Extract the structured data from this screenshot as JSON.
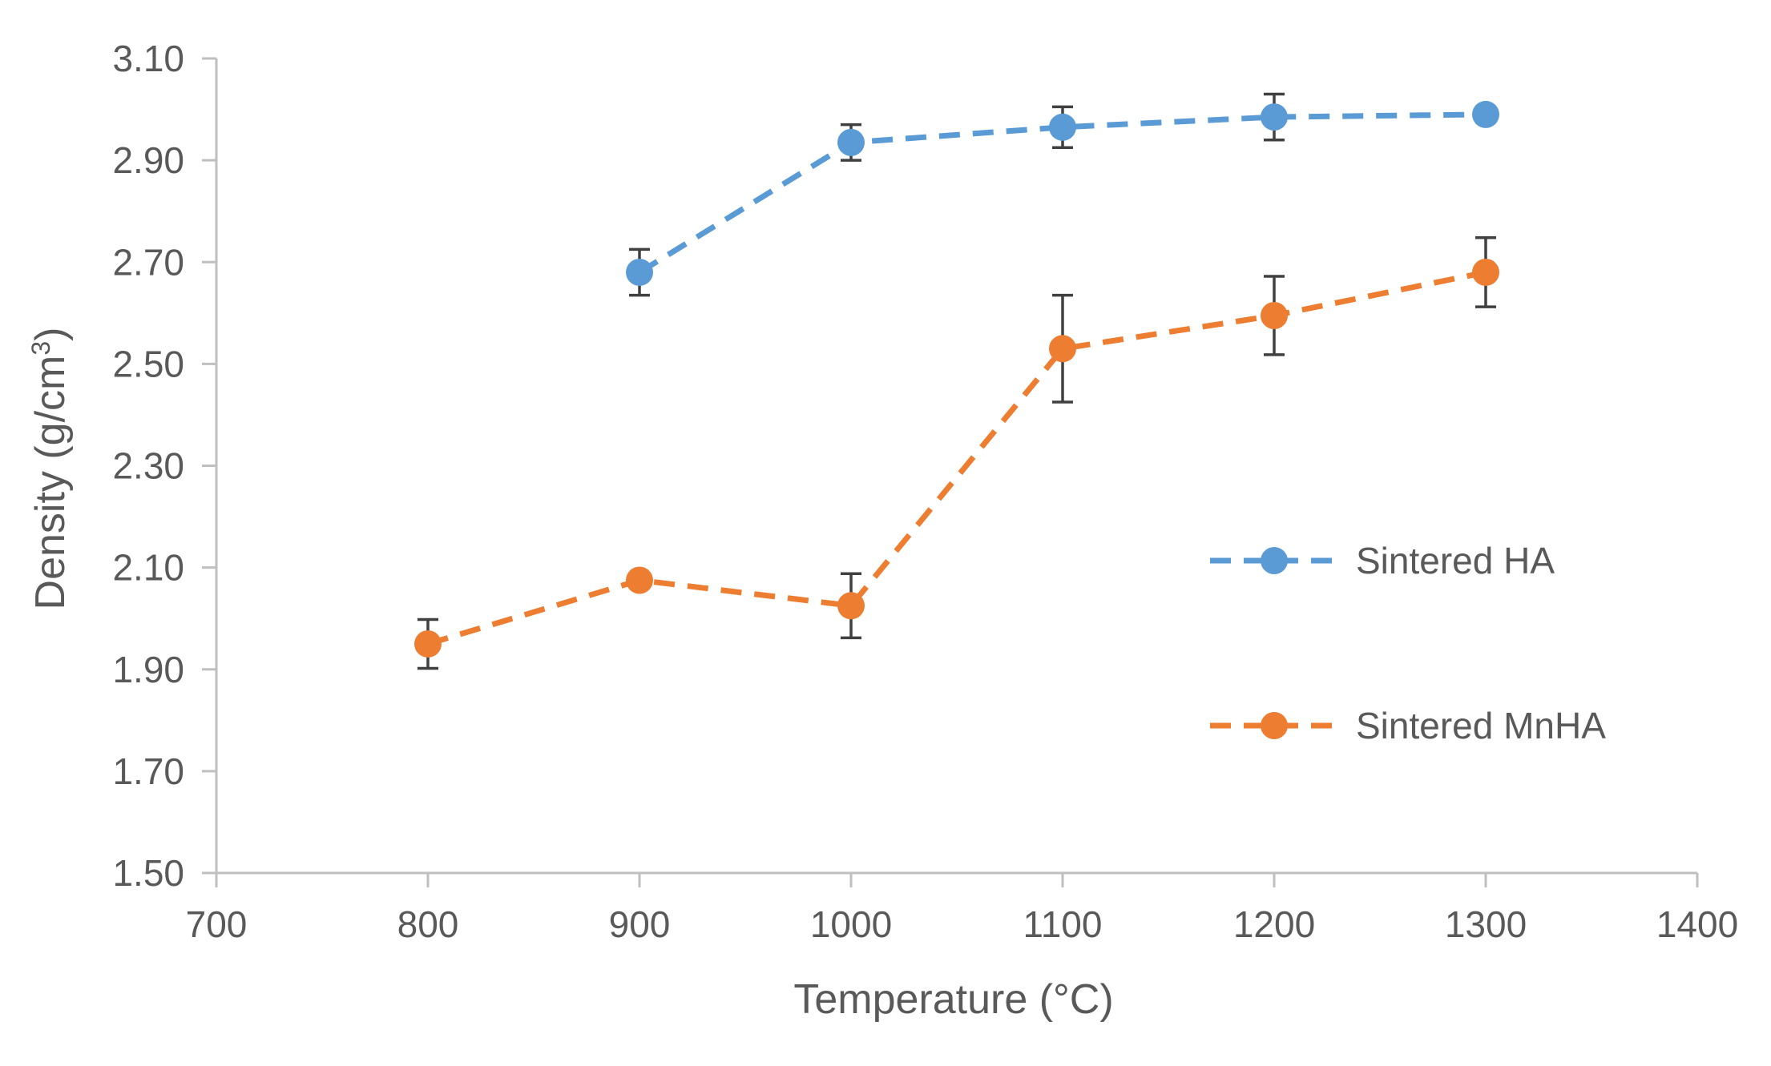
{
  "chart_data": {
    "type": "line",
    "title": "",
    "xlabel": "Temperature (°C)",
    "ylabel_main": "Density (g/cm",
    "ylabel_sup": "3",
    "ylabel_close": ")",
    "xlim": [
      700,
      1400
    ],
    "ylim": [
      1.5,
      3.1
    ],
    "xticks": [
      "700",
      "800",
      "900",
      "1000",
      "1100",
      "1200",
      "1300",
      "1400"
    ],
    "xtick_values": [
      700,
      800,
      900,
      1000,
      1100,
      1200,
      1300,
      1400
    ],
    "yticks": [
      "1.50",
      "1.70",
      "1.90",
      "2.10",
      "2.30",
      "2.50",
      "2.70",
      "2.90",
      "3.10"
    ],
    "ytick_values": [
      1.5,
      1.7,
      1.9,
      2.1,
      2.3,
      2.5,
      2.7,
      2.9,
      3.1
    ],
    "grid": false,
    "legend_position": "right-center",
    "series": [
      {
        "name": "Sintered HA",
        "color": "#5B9BD5",
        "x": [
          900,
          1000,
          1100,
          1200,
          1300
        ],
        "y": [
          2.68,
          2.935,
          2.965,
          2.985,
          2.99
        ],
        "err": [
          0.045,
          0.035,
          0.04,
          0.045,
          0.015
        ]
      },
      {
        "name": "Sintered MnHA",
        "color": "#ED7D31",
        "x": [
          800,
          900,
          1000,
          1100,
          1200,
          1300
        ],
        "y": [
          1.95,
          2.075,
          2.025,
          2.53,
          2.595,
          2.68
        ],
        "err": [
          0.048,
          0.0,
          0.063,
          0.105,
          0.077,
          0.068
        ]
      }
    ],
    "error_bar_color": "#404040",
    "axis_color": "#BFBFBF"
  }
}
